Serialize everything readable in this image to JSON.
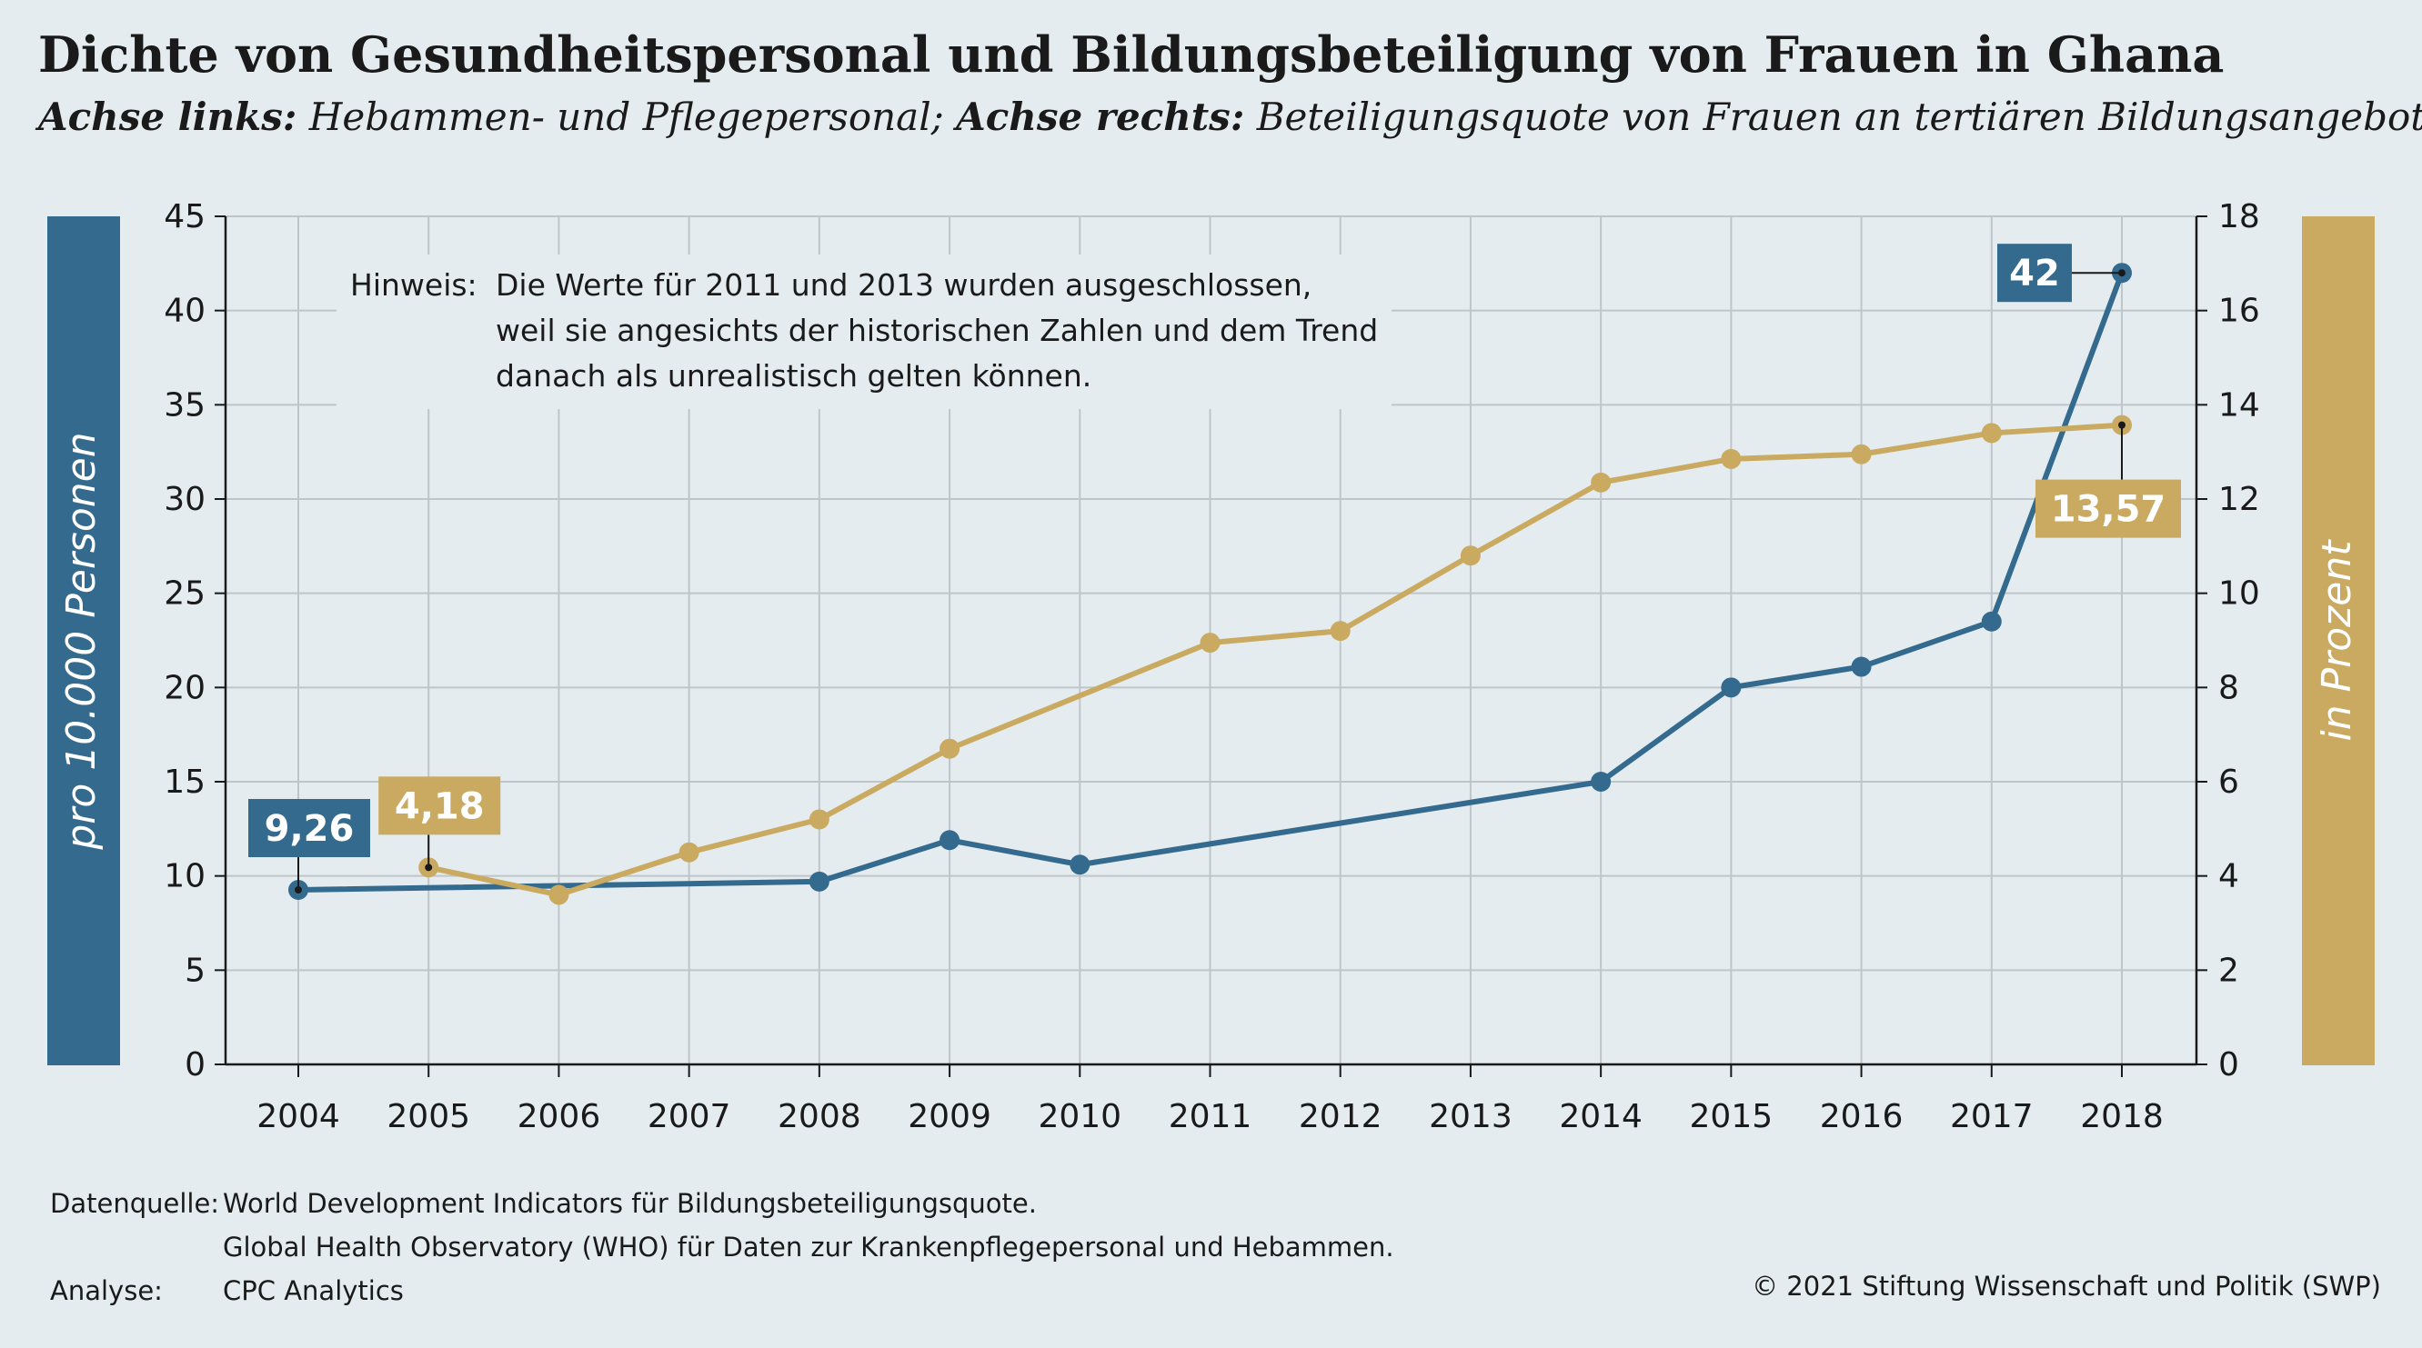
{
  "header": {
    "title": "Dichte von Gesundheitspersonal und Bildungsbeteiligung von Frauen in Ghana",
    "subtitle_left_label": "Achse links:",
    "subtitle_left_text": " Hebammen- und Pflegepersonal; ",
    "subtitle_right_label": "Achse rechts:",
    "subtitle_right_text": " Beteiligungsquote von Frauen an tertiären Bildungsangeboten"
  },
  "note": {
    "label": "Hinweis:",
    "lines": [
      "Die Werte für 2011 und 2013 wurden ausgeschlossen,",
      "weil sie angesichts der historischen Zahlen und dem Trend",
      "danach als unrealistisch gelten können."
    ]
  },
  "footer": {
    "source_label": "Datenquelle:",
    "source_line1": "World Development Indicators für Bildungsbeteiligungsquote.",
    "source_line2": "Global Health Observatory (WHO) für Daten zur Krankenpflegepersonal und Hebammen.",
    "analysis_label": "Analyse:",
    "analysis_value": "CPC Analytics",
    "copyright": "© 2021 Stiftung Wissenschaft und Politik (SWP)"
  },
  "colors": {
    "blue": "#336a8e",
    "gold": "#c9aa60",
    "grid": "#bfc6ca",
    "background": "#e4ecef"
  },
  "chart_data": {
    "type": "line",
    "categories": [
      "2004",
      "2005",
      "2006",
      "2007",
      "2008",
      "2009",
      "2010",
      "2011",
      "2012",
      "2013",
      "2014",
      "2015",
      "2016",
      "2017",
      "2018"
    ],
    "left_axis": {
      "label": "pro 10.000 Personen",
      "min": 0,
      "max": 45,
      "ticks": [
        "0",
        "5",
        "10",
        "15",
        "20",
        "25",
        "30",
        "35",
        "40",
        "45"
      ]
    },
    "right_axis": {
      "label": "in Prozent",
      "min": 0,
      "max": 18,
      "ticks": [
        "0",
        "2",
        "4",
        "6",
        "8",
        "10",
        "12",
        "14",
        "16",
        "18"
      ]
    },
    "series": [
      {
        "axis": "left",
        "color": "#336a8e",
        "points": [
          {
            "x": "2004",
            "y": 9.26
          },
          {
            "x": "2008",
            "y": 9.7
          },
          {
            "x": "2009",
            "y": 11.9
          },
          {
            "x": "2010",
            "y": 10.6
          },
          {
            "x": "2014",
            "y": 15.0
          },
          {
            "x": "2015",
            "y": 20.0
          },
          {
            "x": "2016",
            "y": 21.1
          },
          {
            "x": "2017",
            "y": 23.5
          },
          {
            "x": "2018",
            "y": 42
          }
        ]
      },
      {
        "axis": "right",
        "color": "#c9aa60",
        "points": [
          {
            "x": "2005",
            "y": 4.18
          },
          {
            "x": "2006",
            "y": 3.6
          },
          {
            "x": "2007",
            "y": 4.5
          },
          {
            "x": "2008",
            "y": 5.2
          },
          {
            "x": "2009",
            "y": 6.7
          },
          {
            "x": "2011",
            "y": 8.95
          },
          {
            "x": "2012",
            "y": 9.2
          },
          {
            "x": "2013",
            "y": 10.8
          },
          {
            "x": "2014",
            "y": 12.35
          },
          {
            "x": "2015",
            "y": 12.85
          },
          {
            "x": "2016",
            "y": 12.95
          },
          {
            "x": "2017",
            "y": 13.4
          },
          {
            "x": "2018",
            "y": 13.57
          }
        ]
      }
    ],
    "annotations": [
      {
        "series": 0,
        "x": "2004",
        "y": 9.26,
        "text": "9,26",
        "placement": "above"
      },
      {
        "series": 1,
        "x": "2005",
        "y": 4.18,
        "text": "4,18",
        "placement": "above"
      },
      {
        "series": 0,
        "x": "2018",
        "y": 42,
        "text": "42",
        "placement": "left"
      },
      {
        "series": 1,
        "x": "2018",
        "y": 13.57,
        "text": "13,57",
        "placement": "below"
      }
    ],
    "grid": true
  }
}
